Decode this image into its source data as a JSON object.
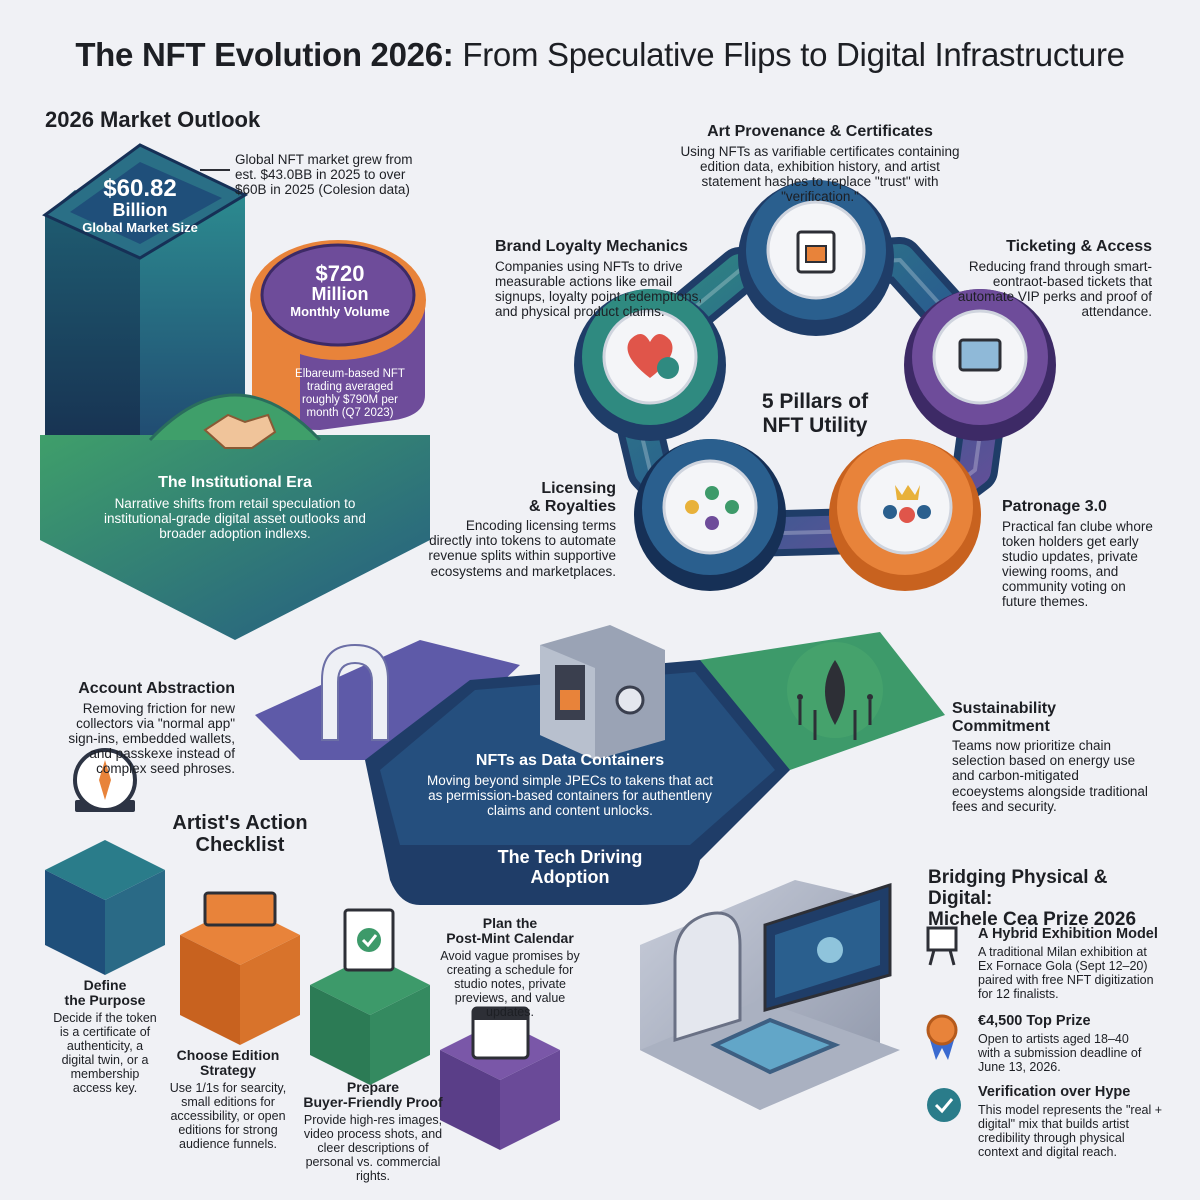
{
  "title": {
    "bold": "The NFT Evolution 2026:",
    "rest": "From Speculative Flips to Digital Infrastructure"
  },
  "market": {
    "heading": "2026 Market Outlook",
    "global_value": "$60.82",
    "global_unit": "Billion",
    "global_label": "Global Market Size",
    "global_note": "Global NFT market grew from est. $43.0BB in 2025 to over $60B in 2025 (Colesion data)",
    "monthly_value": "$720",
    "monthly_unit": "Million",
    "monthly_label": "Monthly Volume",
    "monthly_note": "Elbareum-based NFT trading averaged roughly $790M per month (Q7 2023)",
    "institutional_title": "The Institutional Era",
    "institutional_text": "Narrative shifts from retail speculation to institutional-grade digital asset outlooks and broader adoption indlexs."
  },
  "pillars": {
    "center_line1": "5 Pillars of",
    "center_line2": "NFT Utility",
    "items": [
      {
        "title": "Art Provenance & Certificates",
        "text": "Using NFTs as varifiable certificates containing edition data, exhibition history, and artist statement hashes to replace \"trust\" with \"verification.\""
      },
      {
        "title": "Brand Loyalty Mechanics",
        "text": "Companies using NFTs to drive measurable actions like email signups, loyalty point redemptions, and physical product claims."
      },
      {
        "title": "Ticketing & Access",
        "text": "Reducing frand through smart-eontraot-based tickets that automate VIP perks and proof of attendance."
      },
      {
        "title_line1": "Licensing",
        "title_line2": "& Royalties",
        "text": "Encoding licensing terms directly into tokens to automate revenue splits within supportive ecosystems and marketplaces."
      },
      {
        "title": "Patronage 3.0",
        "text": "Practical fan clube whore token holders get early studio updates, private viewing rooms, and community voting on future themes."
      }
    ]
  },
  "tech": {
    "account_title": "Account Abstraction",
    "account_text": "Removing friction for new collectors via \"normal app\" sign-ins, embedded wallets, and passkexe instead of complex seed phroses.",
    "data_title": "NFTs as Data Containers",
    "data_text": "Moving beyond simple JPECs to takens that act as permission-based containers for authentleny claims and content unlocks.",
    "sustain_title": "Sustainability Commitment",
    "sustain_text": "Teams now prioritize chain selection based on energy use and carbon-mitigated ecoeystems alongside traditional fees and security.",
    "footer_line1": "The Tech Driving",
    "footer_line2": "Adoption"
  },
  "checklist": {
    "heading_line1": "Artist's Action",
    "heading_line2": "Checklist",
    "steps": [
      {
        "title_line1": "Define",
        "title_line2": "the Purpose",
        "text": "Decide if the token is a certificate of authenticity, a digital twin, or a membership access key."
      },
      {
        "title_line1": "Choose Edition",
        "title_line2": "Strategy",
        "text": "Use 1/1s for searcity, small editions for accessibility, or open editions for strong audience funnels."
      },
      {
        "title_line1": "Prepare",
        "title_line2": "Buyer-Friendly Proof",
        "text": "Provide high-res images, video process shots, and cleer descriptions of personal vs. commercial rights."
      },
      {
        "title_line1": "Plan the",
        "title_line2": "Post-Mint Calendar",
        "text": "Avoid vague promises by creating a schedule for studio notes, private previews, and value updates."
      }
    ]
  },
  "bridge": {
    "heading_line1": "Bridging Physical & Digital:",
    "heading_line2": "Michele Cea Prize 2026",
    "items": [
      {
        "title": "A Hybrid Exhibition Model",
        "text": "A traditional Milan exhibition at Ex Fornace Gola (Sept 12–20) paired with free NFT digitization for 12 finalists."
      },
      {
        "title": "€4,500 Top Prize",
        "text": "Open to artists aged 18–40 with a submission deadline of June 13, 2026."
      },
      {
        "title": "Verification over Hype",
        "text": "This model represents the \"real + digital\" mix that builds artist credibility through physical context and digital reach."
      }
    ]
  },
  "colors": {
    "navy": "#1f3d68",
    "teal": "#2a7c8a",
    "green": "#3d9a6a",
    "purple": "#6e4c9a",
    "orange": "#e8833a",
    "ink": "#1d1f24"
  }
}
